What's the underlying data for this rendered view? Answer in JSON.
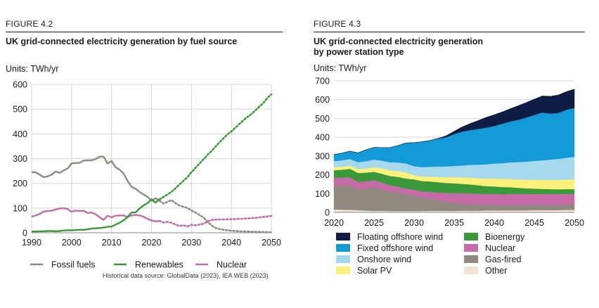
{
  "figure1": {
    "label": "FIGURE 4.2",
    "title": "UK grid-connected electricity generation by fuel source",
    "units": "Units: TWh/yr",
    "source": "Historical data source: GlobalData (2023), IEA WEB (2023)"
  },
  "figure2": {
    "label": "FIGURE 4.3",
    "title_line1": "UK grid-connected electricity generation",
    "title_line2": "by power station type",
    "units": "Units: TWh/yr"
  },
  "chart_data": [
    {
      "type": "line",
      "title": "UK grid-connected electricity generation by fuel source",
      "ylabel": "Units: TWh/yr",
      "xlim": [
        1990,
        2050
      ],
      "ylim": [
        0,
        600
      ],
      "xticks": [
        1990,
        2000,
        2010,
        2020,
        2030,
        2040,
        2050
      ],
      "yticks": [
        0,
        100,
        200,
        300,
        400,
        500,
        600
      ],
      "grid": true,
      "legend_position": "bottom",
      "historical_end": 2022,
      "series": [
        {
          "name": "Fossil fuels",
          "color": "#8f8980",
          "historical": [
            [
              1990,
              245
            ],
            [
              1991,
              244
            ],
            [
              1992,
              235
            ],
            [
              1993,
              225
            ],
            [
              1994,
              228
            ],
            [
              1995,
              235
            ],
            [
              1996,
              248
            ],
            [
              1997,
              242
            ],
            [
              1998,
              252
            ],
            [
              1999,
              260
            ],
            [
              2000,
              280
            ],
            [
              2001,
              282
            ],
            [
              2002,
              283
            ],
            [
              2003,
              292
            ],
            [
              2004,
              293
            ],
            [
              2005,
              293
            ],
            [
              2006,
              298
            ],
            [
              2007,
              308
            ],
            [
              2008,
              308
            ],
            [
              2009,
              280
            ],
            [
              2010,
              290
            ],
            [
              2011,
              265
            ],
            [
              2012,
              255
            ],
            [
              2013,
              240
            ],
            [
              2014,
              210
            ],
            [
              2015,
              185
            ],
            [
              2016,
              178
            ],
            [
              2017,
              165
            ],
            [
              2018,
              155
            ],
            [
              2019,
              145
            ],
            [
              2020,
              130
            ],
            [
              2021,
              140
            ],
            [
              2022,
              130
            ]
          ],
          "projection": [
            [
              2022,
              130
            ],
            [
              2023,
              118
            ],
            [
              2024,
              125
            ],
            [
              2025,
              132
            ],
            [
              2026,
              120
            ],
            [
              2027,
              110
            ],
            [
              2028,
              105
            ],
            [
              2029,
              100
            ],
            [
              2030,
              90
            ],
            [
              2031,
              82
            ],
            [
              2032,
              72
            ],
            [
              2033,
              62
            ],
            [
              2034,
              45
            ],
            [
              2035,
              30
            ],
            [
              2036,
              20
            ],
            [
              2037,
              15
            ],
            [
              2038,
              12
            ],
            [
              2039,
              10
            ],
            [
              2040,
              8
            ],
            [
              2042,
              6
            ],
            [
              2044,
              5
            ],
            [
              2046,
              4
            ],
            [
              2048,
              3
            ],
            [
              2050,
              2
            ]
          ]
        },
        {
          "name": "Renewables",
          "color": "#3a9a3a",
          "historical": [
            [
              1990,
              5
            ],
            [
              1991,
              5
            ],
            [
              1992,
              6
            ],
            [
              1993,
              6
            ],
            [
              1994,
              7
            ],
            [
              1995,
              7
            ],
            [
              1996,
              6
            ],
            [
              1997,
              7
            ],
            [
              1998,
              9
            ],
            [
              1999,
              10
            ],
            [
              2000,
              10
            ],
            [
              2001,
              11
            ],
            [
              2002,
              12
            ],
            [
              2003,
              12
            ],
            [
              2004,
              14
            ],
            [
              2005,
              17
            ],
            [
              2006,
              18
            ],
            [
              2007,
              19
            ],
            [
              2008,
              21
            ],
            [
              2009,
              24
            ],
            [
              2010,
              25
            ],
            [
              2011,
              33
            ],
            [
              2012,
              40
            ],
            [
              2013,
              50
            ],
            [
              2014,
              63
            ],
            [
              2015,
              82
            ],
            [
              2016,
              82
            ],
            [
              2017,
              98
            ],
            [
              2018,
              110
            ],
            [
              2019,
              120
            ],
            [
              2020,
              135
            ],
            [
              2021,
              122
            ],
            [
              2022,
              135
            ]
          ],
          "projection": [
            [
              2022,
              135
            ],
            [
              2023,
              145
            ],
            [
              2024,
              155
            ],
            [
              2025,
              165
            ],
            [
              2026,
              180
            ],
            [
              2027,
              195
            ],
            [
              2028,
              210
            ],
            [
              2029,
              225
            ],
            [
              2030,
              245
            ],
            [
              2031,
              262
            ],
            [
              2032,
              280
            ],
            [
              2033,
              297
            ],
            [
              2034,
              315
            ],
            [
              2035,
              330
            ],
            [
              2036,
              348
            ],
            [
              2037,
              365
            ],
            [
              2038,
              382
            ],
            [
              2039,
              398
            ],
            [
              2040,
              410
            ],
            [
              2041,
              425
            ],
            [
              2042,
              440
            ],
            [
              2043,
              455
            ],
            [
              2044,
              468
            ],
            [
              2045,
              480
            ],
            [
              2046,
              495
            ],
            [
              2047,
              510
            ],
            [
              2048,
              525
            ],
            [
              2049,
              545
            ],
            [
              2050,
              560
            ]
          ]
        },
        {
          "name": "Nuclear",
          "color": "#c76aa8",
          "historical": [
            [
              1990,
              65
            ],
            [
              1991,
              70
            ],
            [
              1992,
              76
            ],
            [
              1993,
              86
            ],
            [
              1994,
              88
            ],
            [
              1995,
              89
            ],
            [
              1996,
              94
            ],
            [
              1997,
              98
            ],
            [
              1998,
              99
            ],
            [
              1999,
              96
            ],
            [
              2000,
              85
            ],
            [
              2001,
              90
            ],
            [
              2002,
              88
            ],
            [
              2003,
              89
            ],
            [
              2004,
              80
            ],
            [
              2005,
              82
            ],
            [
              2006,
              75
            ],
            [
              2007,
              63
            ],
            [
              2008,
              52
            ],
            [
              2009,
              69
            ],
            [
              2010,
              62
            ],
            [
              2011,
              69
            ],
            [
              2012,
              70
            ],
            [
              2013,
              70
            ],
            [
              2014,
              64
            ],
            [
              2015,
              70
            ],
            [
              2016,
              72
            ],
            [
              2017,
              70
            ],
            [
              2018,
              65
            ],
            [
              2019,
              56
            ],
            [
              2020,
              50
            ],
            [
              2021,
              46
            ],
            [
              2022,
              48
            ]
          ],
          "projection": [
            [
              2022,
              48
            ],
            [
              2023,
              41
            ],
            [
              2024,
              44
            ],
            [
              2025,
              40
            ],
            [
              2026,
              33
            ],
            [
              2027,
              28
            ],
            [
              2028,
              30
            ],
            [
              2029,
              26
            ],
            [
              2030,
              32
            ],
            [
              2031,
              30
            ],
            [
              2032,
              33
            ],
            [
              2033,
              36
            ],
            [
              2034,
              45
            ],
            [
              2035,
              52
            ],
            [
              2036,
              53
            ],
            [
              2037,
              54
            ],
            [
              2038,
              54
            ],
            [
              2040,
              55
            ],
            [
              2042,
              56
            ],
            [
              2044,
              58
            ],
            [
              2046,
              60
            ],
            [
              2048,
              64
            ],
            [
              2050,
              68
            ]
          ]
        }
      ]
    },
    {
      "type": "area",
      "title": "UK grid-connected electricity generation by power station type",
      "ylabel": "Units: TWh/yr",
      "stacked": true,
      "xlim": [
        2020,
        2050
      ],
      "ylim": [
        0,
        700
      ],
      "xticks": [
        2020,
        2025,
        2030,
        2035,
        2040,
        2045,
        2050
      ],
      "yticks": [
        0,
        100,
        200,
        300,
        400,
        500,
        600,
        700
      ],
      "grid": true,
      "legend_position": "bottom",
      "x": [
        2020,
        2021,
        2022,
        2023,
        2024,
        2025,
        2026,
        2027,
        2028,
        2029,
        2030,
        2031,
        2032,
        2033,
        2034,
        2035,
        2036,
        2037,
        2038,
        2039,
        2040,
        2041,
        2042,
        2043,
        2044,
        2045,
        2046,
        2047,
        2048,
        2049,
        2050
      ],
      "series": [
        {
          "name": "Other",
          "color": "#f2e4d2",
          "values": [
            15,
            15,
            14,
            12,
            10,
            8,
            8,
            7,
            7,
            7,
            7,
            7,
            8,
            8,
            8,
            8,
            9,
            9,
            9,
            10,
            10,
            10,
            11,
            11,
            11,
            12,
            12,
            12,
            12,
            13,
            13
          ]
        },
        {
          "name": "Gas-fired",
          "color": "#8f8980",
          "values": [
            125,
            128,
            130,
            110,
            118,
            125,
            115,
            105,
            100,
            90,
            82,
            72,
            65,
            58,
            50,
            43,
            38,
            34,
            32,
            30,
            30,
            29,
            29,
            29,
            29,
            29,
            28,
            28,
            28,
            28,
            28
          ]
        },
        {
          "name": "Nuclear",
          "color": "#c76aa8",
          "values": [
            45,
            42,
            43,
            40,
            38,
            38,
            36,
            32,
            30,
            30,
            32,
            32,
            36,
            40,
            45,
            52,
            55,
            58,
            58,
            58,
            58,
            58,
            58,
            58,
            58,
            58,
            58,
            58,
            58,
            58,
            58
          ]
        },
        {
          "name": "Bioenergy",
          "color": "#3a9a3a",
          "values": [
            40,
            42,
            45,
            48,
            46,
            45,
            47,
            50,
            52,
            53,
            55,
            56,
            56,
            55,
            54,
            52,
            50,
            48,
            45,
            42,
            40,
            38,
            36,
            33,
            30,
            28,
            27,
            26,
            25,
            25,
            25
          ]
        },
        {
          "name": "Solar PV",
          "color": "#fcf17a",
          "values": [
            15,
            16,
            17,
            20,
            22,
            25,
            28,
            30,
            32,
            33,
            22,
            24,
            26,
            28,
            30,
            32,
            34,
            36,
            38,
            40,
            42,
            43,
            44,
            45,
            46,
            47,
            48,
            49,
            50,
            51,
            52
          ]
        },
        {
          "name": "Onshore wind",
          "color": "#a6d9ee",
          "values": [
            33,
            34,
            35,
            37,
            39,
            40,
            41,
            43,
            45,
            47,
            48,
            50,
            52,
            55,
            58,
            60,
            64,
            68,
            72,
            76,
            80,
            84,
            88,
            92,
            96,
            100,
            104,
            108,
            112,
            116,
            120
          ]
        },
        {
          "name": "Fixed offshore wind",
          "color": "#149bd7",
          "values": [
            35,
            38,
            42,
            50,
            60,
            65,
            70,
            78,
            90,
            110,
            125,
            135,
            140,
            148,
            155,
            170,
            180,
            185,
            190,
            195,
            200,
            210,
            218,
            225,
            235,
            245,
            255,
            245,
            245,
            255,
            260
          ]
        },
        {
          "name": "Floating offshore wind",
          "color": "#0f1c43",
          "values": [
            0,
            0,
            0,
            0,
            0,
            0,
            0,
            0,
            0,
            0,
            0,
            0,
            0,
            2,
            8,
            15,
            25,
            35,
            45,
            55,
            60,
            63,
            68,
            75,
            80,
            84,
            88,
            92,
            95,
            97,
            100
          ]
        }
      ],
      "legend_order": [
        "Floating offshore wind",
        "Bioenergy",
        "Fixed offshore wind",
        "Nuclear",
        "Onshore wind",
        "Gas-fired",
        "Solar PV",
        "Other"
      ]
    }
  ]
}
